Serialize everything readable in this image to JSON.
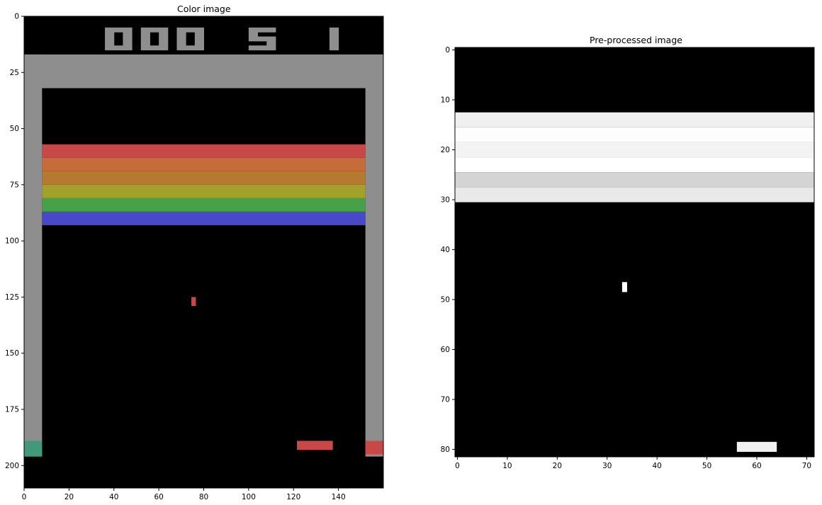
{
  "left_panel": {
    "title": "Color image",
    "x_ticks": [
      0,
      20,
      40,
      60,
      80,
      100,
      120,
      140
    ],
    "y_ticks": [
      0,
      25,
      50,
      75,
      100,
      125,
      150,
      175,
      200
    ],
    "x_range": [
      0,
      160
    ],
    "y_range": [
      0,
      210
    ],
    "scoreboard": {
      "score": "000",
      "lives": "5",
      "player": "1"
    },
    "colors": {
      "background": "#000000",
      "wall": "#8e8e8e",
      "score_digits": "#8e8e8e",
      "bricks": [
        "#c84848",
        "#c66c3a",
        "#b47a30",
        "#a2a22a",
        "#48a048",
        "#4848c8"
      ],
      "ball": "#c84848",
      "paddle": "#c84848",
      "left_base": "#42987a",
      "right_base": "#c84848"
    }
  },
  "right_panel": {
    "title": "Pre-processed image",
    "x_ticks": [
      0,
      10,
      20,
      30,
      40,
      50,
      60,
      70
    ],
    "y_ticks": [
      0,
      10,
      20,
      30,
      40,
      50,
      60,
      70,
      80
    ],
    "x_range": [
      0,
      72
    ],
    "y_range": [
      0,
      82
    ],
    "colors": {
      "background": "#000000",
      "bands": [
        "#f0f0f0",
        "#fdfdfd",
        "#f3f3f3",
        "#ffffff",
        "#d4d4d4",
        "#e9e9e9"
      ],
      "ball": "#ffffff",
      "paddle": "#f1f1f1"
    }
  }
}
